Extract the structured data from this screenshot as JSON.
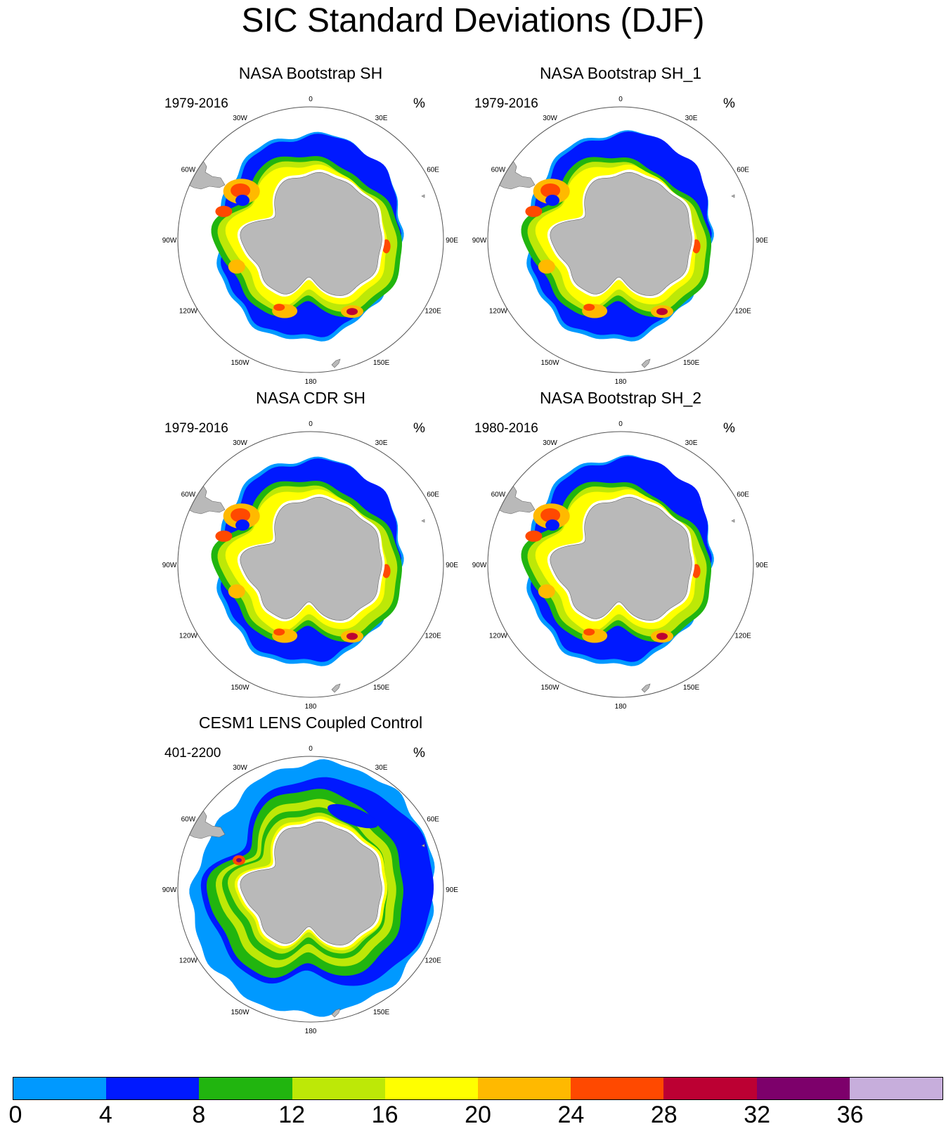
{
  "title": "SIC Standard Deviations (DJF)",
  "colors": {
    "land": "#b9b9b9",
    "ice_edge_white": "#ffffff",
    "circle": "#555555"
  },
  "longitude_labels": [
    "0",
    "30E",
    "60E",
    "90E",
    "120E",
    "150E",
    "180",
    "150W",
    "120W",
    "90W",
    "60W",
    "30W"
  ],
  "panels": [
    {
      "id": "nasa-bootstrap-sh",
      "title": "NASA Bootstrap SH",
      "period": "1979-2016",
      "units": "%",
      "variant": "obs",
      "blue_sector_strength": 1.0
    },
    {
      "id": "nasa-bootstrap-sh-1",
      "title": "NASA Bootstrap SH_1",
      "period": "1979-2016",
      "units": "%",
      "variant": "obs",
      "blue_sector_strength": 1.2
    },
    {
      "id": "nasa-cdr-sh",
      "title": "NASA CDR SH",
      "period": "1979-2016",
      "units": "%",
      "variant": "obs",
      "blue_sector_strength": 1.0
    },
    {
      "id": "nasa-bootstrap-sh-2",
      "title": "NASA Bootstrap SH_2",
      "period": "1980-2016",
      "units": "%",
      "variant": "obs",
      "blue_sector_strength": 1.2
    },
    {
      "id": "cesm1-lens-coupled-control",
      "title": "CESM1 LENS Coupled Control",
      "period": "401-2200",
      "units": "%",
      "variant": "model",
      "blue_sector_strength": 1.0
    }
  ],
  "colorbar": {
    "labels": [
      "0",
      "4",
      "8",
      "12",
      "16",
      "20",
      "24",
      "28",
      "32",
      "36"
    ],
    "colors": [
      "#0099ff",
      "#0019ff",
      "#21b50f",
      "#bde807",
      "#ffff00",
      "#ffb900",
      "#ff4900",
      "#bc0033",
      "#7d006b",
      "#c7aedc"
    ]
  }
}
